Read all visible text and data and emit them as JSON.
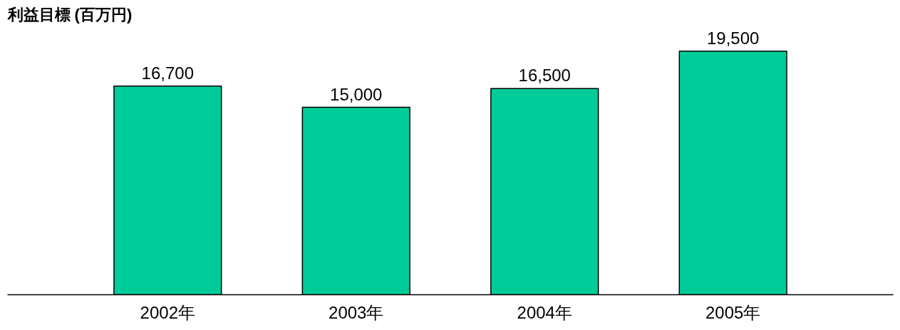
{
  "chart_data": {
    "type": "bar",
    "title": "利益目標 (百万円)",
    "categories": [
      "2002年",
      "2003年",
      "2004年",
      "2005年"
    ],
    "values": [
      16700,
      15000,
      16500,
      19500
    ],
    "color": "#00cc99",
    "tick_labels": "x",
    "data_labels": true,
    "value_labels": [
      "16,700",
      "15,000",
      "16,500",
      "19,500"
    ],
    "grid": false
  }
}
